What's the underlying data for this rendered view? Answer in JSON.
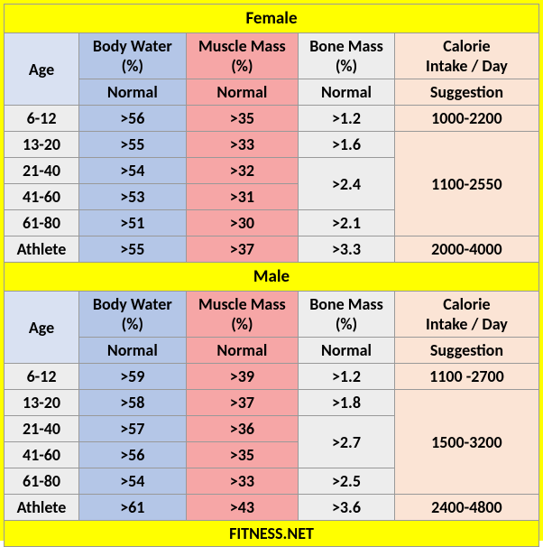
{
  "colors": {
    "page_bg": "#ffff00",
    "border": "#999999",
    "age_header_bg": "#d9e1f2",
    "body_water_bg": "#b4c6e7",
    "muscle_mass_bg": "#f6a6a6",
    "bone_mass_bg": "#ededed",
    "calorie_bg": "#fbe4d5",
    "age_cell_bg": "#ededed"
  },
  "typography": {
    "font_family": "Calibri, Arial, sans-serif",
    "cell_fontsize": 18,
    "title_fontsize": 19,
    "font_weight": "bold"
  },
  "columns": {
    "age": {
      "label": "Age",
      "sub": ""
    },
    "body_water": {
      "label_line1": "Body Water",
      "label_line2": "(%)",
      "sub": "Normal"
    },
    "muscle_mass": {
      "label_line1": "Muscle Mass",
      "label_line2": "(%)",
      "sub": "Normal"
    },
    "bone_mass": {
      "label_line1": "Bone Mass",
      "label_line2": "(%)",
      "sub": "Normal"
    },
    "calorie": {
      "label_line1": "Calorie",
      "label_line2": "Intake / Day",
      "sub": "Suggestion"
    }
  },
  "female": {
    "title": "Female",
    "rows": [
      {
        "age": "6-12",
        "bw": ">56",
        "mm": ">35",
        "bm": ">1.2",
        "cal": "1000-2200"
      },
      {
        "age": "13-20",
        "bw": ">55",
        "mm": ">33",
        "bm": ">1.6",
        "cal": null
      },
      {
        "age": "21-40",
        "bw": ">54",
        "mm": ">32",
        "bm": null,
        "cal": null
      },
      {
        "age": "41-60",
        "bw": ">53",
        "mm": ">31",
        "bm": null,
        "cal": null
      },
      {
        "age": "61-80",
        "bw": ">51",
        "mm": ">30",
        "bm": ">2.1",
        "cal": null
      },
      {
        "age": "Athlete",
        "bw": ">55",
        "mm": ">37",
        "bm": ">3.3",
        "cal": "2000-4000"
      }
    ],
    "bone_mass_merged_21_60": ">2.4",
    "calorie_merged_13_80": "1100-2550"
  },
  "male": {
    "title": "Male",
    "rows": [
      {
        "age": "6-12",
        "bw": ">59",
        "mm": ">39",
        "bm": ">1.2",
        "cal": "1100 -2700"
      },
      {
        "age": "13-20",
        "bw": ">58",
        "mm": ">37",
        "bm": ">1.8",
        "cal": null
      },
      {
        "age": "21-40",
        "bw": ">57",
        "mm": ">36",
        "bm": null,
        "cal": null
      },
      {
        "age": "41-60",
        "bw": ">56",
        "mm": ">35",
        "bm": null,
        "cal": null
      },
      {
        "age": "61-80",
        "bw": ">54",
        "mm": ">33",
        "bm": ">2.5",
        "cal": null
      },
      {
        "age": "Athlete",
        "bw": ">61",
        "mm": ">43",
        "bm": ">3.6",
        "cal": "2400-4800"
      }
    ],
    "bone_mass_merged_21_60": ">2.7",
    "calorie_merged_13_80": "1500-3200"
  },
  "footer": "FITNESS.NET"
}
